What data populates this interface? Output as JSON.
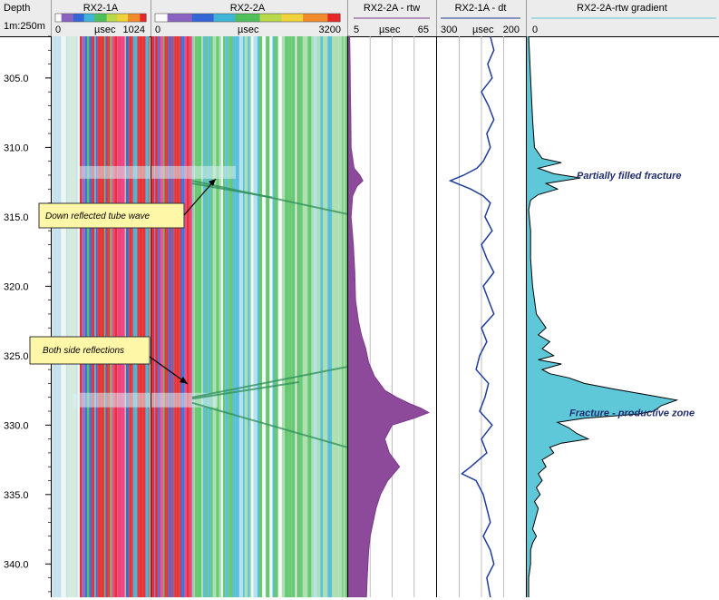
{
  "header": {
    "depth_title": "Depth",
    "depth_scale": "1m:250m",
    "tracks": [
      {
        "id": "rx21a_image",
        "title": "RX2-1A",
        "scale_min": "0",
        "unit": "µsec",
        "scale_max": "1024"
      },
      {
        "id": "rx22a_image",
        "title": "RX2-2A",
        "scale_min": "0",
        "unit": "µsec",
        "scale_max": "3200"
      },
      {
        "id": "rtw",
        "title": "RX2-2A - rtw",
        "scale_min": "5",
        "unit": "µsec",
        "scale_max": "65"
      },
      {
        "id": "dt",
        "title": "RX2-1A - dt",
        "scale_min": "300",
        "unit": "µsec",
        "scale_max": "200"
      },
      {
        "id": "gradient",
        "title": "RX2-2A-rtw gradient",
        "scale_min": "0",
        "unit": "",
        "scale_max": ""
      }
    ]
  },
  "colors": {
    "rtw_fill": "#8d4a9a",
    "rtw_line": "#7a3a88",
    "dt_line": "#1f3d99",
    "gradient_fill": "#5ec8d8",
    "gradient_line": "#000000",
    "callout_bg": "#fff7a8",
    "annotation_text": "#1f2d6e"
  },
  "callouts": [
    {
      "id": "down-reflected",
      "text": "Down reflected tube wave",
      "arrow_to_depth": 312.9
    },
    {
      "id": "both-side",
      "text": "Both side reflections",
      "arrow_to_depth": 327.8
    }
  ],
  "annotations": [
    {
      "id": "partially-filled",
      "text": "Partially filled fracture",
      "depth": 312.0
    },
    {
      "id": "fracture-productive",
      "text": "Fracture - productive zone",
      "depth": 329.1
    }
  ],
  "chart_data": [
    {
      "type": "line",
      "track": "depth",
      "ylabel": "Depth",
      "ylim": [
        302.0,
        342.4
      ],
      "y_ticks": [
        305.0,
        310.0,
        315.0,
        320.0,
        325.0,
        330.0,
        335.0,
        340.0
      ],
      "y_tick_labels": [
        "305.0",
        "310.0",
        "315.0",
        "320.0",
        "325.0",
        "330.0",
        "335.0",
        "340.0"
      ]
    },
    {
      "type": "area",
      "track": "rtw",
      "title": "RX2-2A - rtw",
      "xlim": [
        5,
        65
      ],
      "series": [
        {
          "depth": [
            302.0,
            304.0,
            306.0,
            308.0,
            310.0,
            311.5,
            312.0,
            312.4,
            312.8,
            313.5,
            315.0,
            317.0,
            319.0,
            321.0,
            322.5,
            323.5,
            324.5,
            325.5,
            326.5,
            327.5,
            328.0,
            328.5,
            328.8,
            329.1,
            329.5,
            330.0,
            331.0,
            332.0,
            333.0,
            334.0,
            335.0,
            336.0,
            337.0,
            338.0,
            339.0,
            340.0,
            341.0,
            342.4
          ],
          "values": [
            6.0,
            6.3,
            6.5,
            6.8,
            7.0,
            9.0,
            13.0,
            15.0,
            11.0,
            8.0,
            7.0,
            8.5,
            9.5,
            10.0,
            12.0,
            14.0,
            17.0,
            19.0,
            23.0,
            30.0,
            38.0,
            48.0,
            55.0,
            60.0,
            50.0,
            35.0,
            30.0,
            33.0,
            40.0,
            32.0,
            27.0,
            24.0,
            22.0,
            20.0,
            19.0,
            18.5,
            18.0,
            17.5
          ]
        }
      ]
    },
    {
      "type": "line",
      "track": "dt",
      "title": "RX2-1A - dt",
      "xlim": [
        300,
        200
      ],
      "series": [
        {
          "depth": [
            302.0,
            303.0,
            304.0,
            305.0,
            306.0,
            307.0,
            308.0,
            309.0,
            310.0,
            311.0,
            311.5,
            312.0,
            312.4,
            313.0,
            313.5,
            314.0,
            315.0,
            316.0,
            317.0,
            318.0,
            319.0,
            320.0,
            321.0,
            322.0,
            323.0,
            324.0,
            325.0,
            326.0,
            327.0,
            328.0,
            329.0,
            330.0,
            331.0,
            332.0,
            333.0,
            333.5,
            334.0,
            335.0,
            336.0,
            337.0,
            338.0,
            339.0,
            340.0,
            341.0,
            342.4
          ],
          "values": [
            240,
            236,
            243,
            238,
            250,
            242,
            236,
            244,
            240,
            248,
            255,
            270,
            285,
            262,
            248,
            240,
            246,
            238,
            250,
            244,
            236,
            248,
            242,
            236,
            250,
            244,
            252,
            256,
            242,
            246,
            252,
            238,
            250,
            244,
            262,
            272,
            256,
            248,
            244,
            240,
            248,
            240,
            236,
            244,
            240
          ]
        }
      ]
    },
    {
      "type": "area",
      "track": "gradient",
      "title": "RX2-2A-rtw gradient",
      "xlim": [
        0,
        1
      ],
      "series": [
        {
          "depth": [
            302.0,
            305.0,
            308.0,
            310.0,
            310.8,
            311.1,
            311.5,
            311.9,
            312.2,
            312.6,
            313.0,
            313.4,
            313.8,
            314.5,
            316.0,
            318.0,
            320.0,
            322.0,
            323.0,
            323.5,
            324.0,
            324.5,
            325.0,
            325.3,
            325.6,
            326.0,
            326.3,
            326.6,
            327.0,
            327.4,
            327.8,
            328.2,
            328.6,
            329.0,
            329.2,
            329.5,
            329.8,
            330.2,
            330.6,
            331.0,
            331.3,
            331.6,
            332.0,
            332.5,
            333.0,
            333.5,
            334.0,
            334.5,
            335.0,
            335.5,
            336.0,
            336.5,
            337.0,
            337.5,
            338.0,
            338.5,
            339.0,
            340.0,
            341.0,
            342.4
          ],
          "values": [
            0.01,
            0.02,
            0.03,
            0.04,
            0.08,
            0.18,
            0.06,
            0.14,
            0.28,
            0.1,
            0.16,
            0.06,
            0.02,
            0.01,
            0.02,
            0.02,
            0.03,
            0.05,
            0.1,
            0.06,
            0.12,
            0.08,
            0.14,
            0.06,
            0.18,
            0.08,
            0.12,
            0.22,
            0.3,
            0.45,
            0.62,
            0.78,
            0.7,
            0.66,
            0.58,
            0.3,
            0.16,
            0.22,
            0.26,
            0.32,
            0.18,
            0.12,
            0.14,
            0.08,
            0.1,
            0.06,
            0.08,
            0.05,
            0.07,
            0.04,
            0.06,
            0.05,
            0.04,
            0.03,
            0.05,
            0.03,
            0.02,
            0.02,
            0.01,
            0.01
          ]
        }
      ]
    }
  ]
}
